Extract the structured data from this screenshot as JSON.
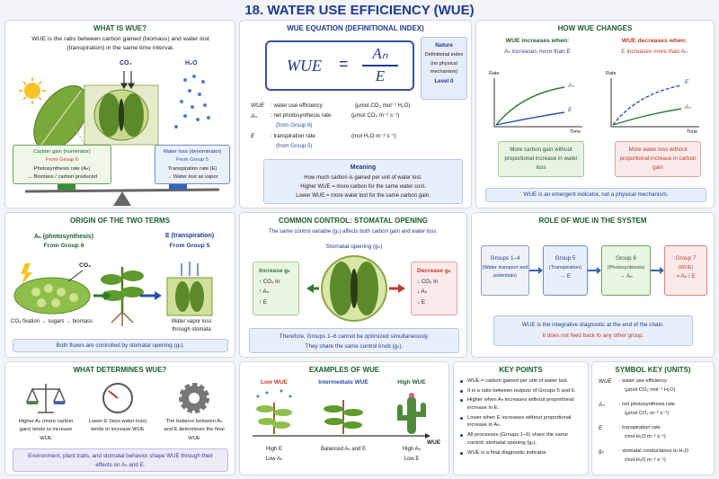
{
  "title": "18. WATER USE EFFICIENCY (WUE)",
  "what_is": {
    "heading": "WHAT IS WUE?",
    "text": "WUE is the ratio between carbon gained (biomass) and water lost (transpiration) in the same time interval.",
    "co2": "CO₂",
    "h2o": "H₂O",
    "carbon_box": [
      "Carbon gain (numerator)",
      "From Group 6",
      "Photosynthesis rate (Aₙ)",
      "→ Biomass / carbon produced"
    ],
    "water_box": [
      "Water loss (denominator)",
      "From Group 5",
      "Transpiration rate (E)",
      "→ Water lost as vapor"
    ]
  },
  "equation": {
    "heading": "WUE EQUATION (DEFINITIONAL INDEX)",
    "lhs": "WUE",
    "eq": "=",
    "num": "Aₙ",
    "den": "E",
    "nature": [
      "Nature",
      "Definitional index",
      "(no physical",
      "mechanism)",
      "Level 0"
    ],
    "defs": [
      {
        "symbol": "WUE",
        "desc": ": water use efficiency",
        "unit": "(μmol CO₂ mol⁻¹ H₂O)"
      },
      {
        "symbol": "Aₙ",
        "desc": ": net photosynthesis rate",
        "unit": "(μmol CO₂ m⁻² s⁻¹)",
        "source": "(from Group 6)"
      },
      {
        "symbol": "E",
        "desc": ": transpiration rate",
        "unit": "(mol H₂O m⁻² s⁻¹)",
        "source": "(from Group 5)"
      }
    ],
    "meaning": {
      "heading": "Meaning",
      "lines": [
        "How much carbon is gained per unit of water lost.",
        "Higher WUE = more carbon for the same water cost.",
        "Lower WUE = more water lost for the same carbon gain."
      ]
    }
  },
  "changes": {
    "heading": "HOW WUE CHANGES",
    "columns": [
      {
        "heading": "WUE increases when:",
        "sub": "Aₙ increases more than E",
        "y": "Rate",
        "x": "Time",
        "top": "Aₙ",
        "bottom": "E",
        "note": "More carbon gain without proportional increase in water loss"
      },
      {
        "heading": "WUE decreases when:",
        "sub": "E increases more than Aₙ",
        "y": "Rate",
        "x": "Time",
        "top": "E",
        "bottom": "Aₙ",
        "note": "More water loss without proportional increase in carbon gain"
      }
    ],
    "footer": "WUE is an emergent indicator, not a physical mechanism."
  },
  "origin": {
    "heading": "ORIGIN OF THE TWO TERMS",
    "left": {
      "title": "Aₙ (photosynthesis)",
      "group": "From Group 6",
      "co2": "CO₂",
      "caption": "CO₂ fixation → sugars → biomass"
    },
    "right": {
      "title": "E (transpiration)",
      "group": "From Group 5",
      "caption": "Water vapor loss through stomata"
    },
    "footer": "Both fluxes are controlled by stomatal opening (gₛ)."
  },
  "control": {
    "heading": "COMMON CONTROL: STOMATAL OPENING",
    "intro": "The same control variable (gₛ) affects both carbon gain and water loss.",
    "center": "Stomatal opening (gₛ)",
    "increase": {
      "title": "Increase gₛ",
      "items": [
        "↑ CO₂ in",
        "↑ Aₙ",
        "↑ E"
      ]
    },
    "decrease": {
      "title": "Decrease gₛ",
      "items": [
        "↓ CO₂ in",
        "↓ Aₙ",
        "↓ E"
      ]
    },
    "footer": [
      "Therefore, Groups 1–6 cannot be optimized simultaneously.",
      "They share the same control knob (gₛ)."
    ]
  },
  "role": {
    "heading": "ROLE OF WUE IN THE SYSTEM",
    "nodes": [
      {
        "title": "Groups 1–4",
        "sub": "(Water transport and potentials)"
      },
      {
        "title": "Group 5",
        "sub": "(Transpiration)",
        "out": "→ E"
      },
      {
        "title": "Group 6",
        "sub": "(Photosynthesis)",
        "out": "→ Aₙ"
      },
      {
        "title": "Group 7",
        "sub": "(WUE)",
        "out": "= Aₙ / E"
      }
    ],
    "footer": [
      "WUE is the integrative diagnostic at the end of the chain.",
      "It does not feed back to any other group."
    ]
  },
  "determines": {
    "heading": "WHAT DETERMINES WUE?",
    "items": [
      "Higher Aₙ (more carbon gain) tends to increase WUE",
      "Lower E (less water loss) tends to increase WUE",
      "The balance between Aₙ and E determines the final WUE"
    ],
    "footer": "Environment, plant traits, and stomatal behavior shape WUE through their effects on Aₙ and E."
  },
  "examples": {
    "heading": "EXAMPLES OF WUE",
    "items": [
      {
        "label": "Low WUE",
        "desc": [
          "High E",
          "Low Aₙ"
        ]
      },
      {
        "label": "Intermediate WUE",
        "desc": [
          "Balanced Aₙ and E"
        ]
      },
      {
        "label": "High WUE",
        "desc": [
          "High Aₙ",
          "Low E"
        ]
      }
    ],
    "axis": "WUE"
  },
  "key_points": {
    "heading": "KEY POINTS",
    "items": [
      "WUE = carbon gained per unit of water lost.",
      "It is a ratio between outputs of Groups 5 and 6.",
      "Higher when Aₙ increases without proportional increase in E.",
      "Lower when E increases without proportional increase in Aₙ.",
      "All processes (Groups 1–6) share the same control: stomatal opening (gₛ).",
      "WUE is a final diagnostic indicator."
    ]
  },
  "symbol_key": {
    "heading": "SYMBOL KEY (UNITS)",
    "rows": [
      {
        "symbol": "WUE",
        "desc": ": water use efficiency",
        "unit": "(μmol CO₂ mol⁻¹ H₂O)"
      },
      {
        "symbol": "Aₙ",
        "desc": ": net photosynthesis rate",
        "unit": "(μmol CO₂ m⁻² s⁻¹)"
      },
      {
        "symbol": "E",
        "desc": ": transpiration rate",
        "unit": "(mol H₂O m⁻² s⁻¹)"
      },
      {
        "symbol": "gₛ",
        "desc": ": stomatal conductance to H₂O",
        "unit": "(mol H₂O m⁻² s⁻¹)"
      }
    ]
  }
}
